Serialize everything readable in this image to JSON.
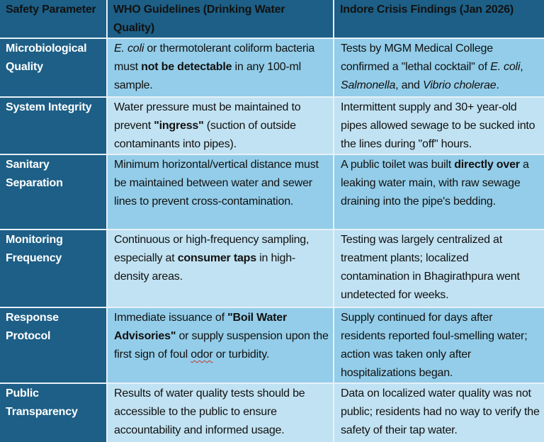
{
  "table": {
    "headers": [
      "Safety Parameter",
      "WHO Guidelines (Drinking Water Quality)",
      "Indore Crisis Findings (Jan 2026)"
    ],
    "colors": {
      "header_bg": "#1d5f86",
      "param_bg": "#1d5f86",
      "row_odd_bg": "#93cde9",
      "row_even_bg": "#c1e2f2",
      "border": "#e6f1f8"
    },
    "rows": [
      {
        "parameter": "Microbiological Quality",
        "who": [
          {
            "t": "E. coli",
            "s": "i"
          },
          {
            "t": " or thermotolerant coliform bacteria must "
          },
          {
            "t": "not be detectable",
            "s": "b"
          },
          {
            "t": " in any 100-ml sample."
          }
        ],
        "indore": [
          {
            "t": "Tests by MGM Medical College confirmed a \"lethal cocktail\" of "
          },
          {
            "t": "E. coli",
            "s": "i"
          },
          {
            "t": ", "
          },
          {
            "t": "Salmonella",
            "s": "i"
          },
          {
            "t": ", and "
          },
          {
            "t": "Vibrio cholerae",
            "s": "i"
          },
          {
            "t": "."
          }
        ]
      },
      {
        "parameter": "System Integrity",
        "who": [
          {
            "t": "Water pressure must be maintained to prevent "
          },
          {
            "t": "\"ingress\"",
            "s": "b"
          },
          {
            "t": " (suction of outside contaminants into pipes)."
          }
        ],
        "indore": [
          {
            "t": "Intermittent supply and 30+ year-old pipes allowed sewage to be sucked into the lines during \"off\" hours."
          }
        ]
      },
      {
        "parameter": "Sanitary Separation",
        "who": [
          {
            "t": "Minimum horizontal/vertical distance must be maintained between water and sewer lines to prevent cross-contamination."
          }
        ],
        "indore": [
          {
            "t": "A public toilet was built "
          },
          {
            "t": "directly over",
            "s": "b"
          },
          {
            "t": " a leaking water main, with raw sewage draining into the pipe's bedding."
          }
        ]
      },
      {
        "parameter": "Monitoring Frequency",
        "who": [
          {
            "t": "Continuous or high-frequency sampling, especially at "
          },
          {
            "t": "consumer taps",
            "s": "b"
          },
          {
            "t": " in high-density areas."
          }
        ],
        "indore": [
          {
            "t": "Testing was largely centralized at treatment plants; localized contamination in Bhagirathpura went undetected for weeks."
          }
        ]
      },
      {
        "parameter": "Response Protocol",
        "who": [
          {
            "t": "Immediate issuance of "
          },
          {
            "t": "\"Boil Water Advisories\"",
            "s": "b"
          },
          {
            "t": " or supply suspension upon the first sign of foul "
          },
          {
            "t": "odor",
            "s": "sp"
          },
          {
            "t": " or turbidity."
          }
        ],
        "indore": [
          {
            "t": "Supply continued for days after residents reported foul-smelling water; action was taken only after hospitalizations began."
          }
        ]
      },
      {
        "parameter": "Public Transparency",
        "who": [
          {
            "t": "Results of water quality tests should be accessible to the public to ensure accountability and informed usage."
          }
        ],
        "indore": [
          {
            "t": "Data on localized water quality was not public; residents had no way to verify the safety of their tap water."
          }
        ]
      }
    ]
  }
}
